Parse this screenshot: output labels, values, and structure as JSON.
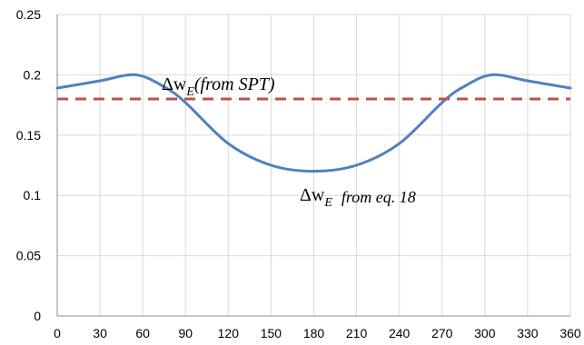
{
  "chart_data": {
    "type": "line",
    "title": "",
    "xlabel": "",
    "ylabel": "",
    "xlim": [
      0,
      360
    ],
    "ylim": [
      0,
      0.25
    ],
    "x_ticks": [
      "0",
      "30",
      "60",
      "90",
      "120",
      "150",
      "180",
      "210",
      "240",
      "270",
      "300",
      "330",
      "360"
    ],
    "y_ticks": [
      "0",
      "0.05",
      "0.1",
      "0.15",
      "0.2",
      "0.25"
    ],
    "grid": "vertical and horizontal",
    "series": [
      {
        "color": "#4F81BD",
        "style": "solid",
        "x": [
          0,
          30,
          55,
          75,
          90,
          120,
          150,
          180,
          210,
          240,
          270,
          285,
          305,
          330,
          360
        ],
        "y": [
          0.189,
          0.195,
          0.2,
          0.19,
          0.177,
          0.143,
          0.125,
          0.12,
          0.125,
          0.143,
          0.177,
          0.19,
          0.2,
          0.195,
          0.189
        ]
      },
      {
        "color": "#C0504D",
        "style": "dashed",
        "x": [
          0,
          360
        ],
        "y": [
          0.18,
          0.18
        ]
      }
    ],
    "annotations": [
      {
        "base": "Δw",
        "sub": "E",
        "text": "(from SPT)",
        "x": 75,
        "y": 0.192
      },
      {
        "base": "Δw",
        "sub": "E",
        "text": "from eq. 18",
        "x": 165,
        "y": 0.105
      }
    ]
  }
}
